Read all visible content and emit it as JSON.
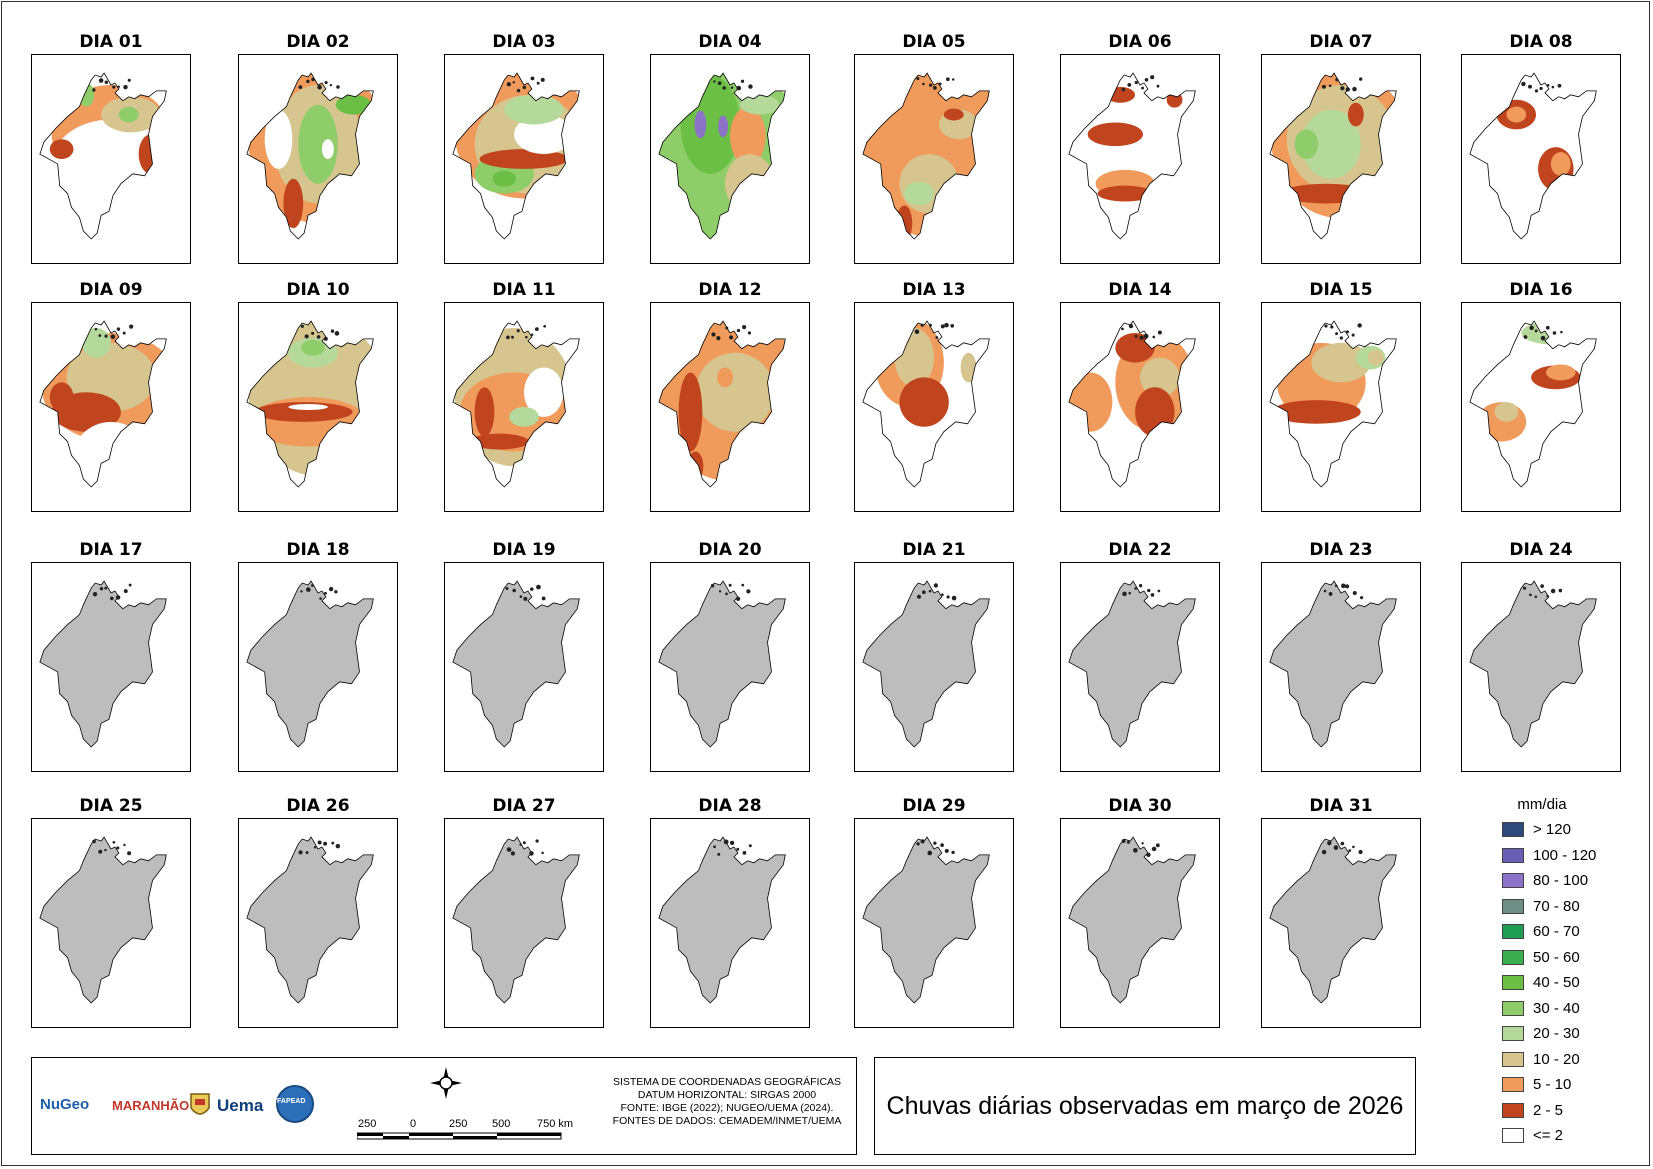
{
  "days": [
    {
      "label": "DIA 01",
      "data": true,
      "pattern": 1
    },
    {
      "label": "DIA 02",
      "data": true,
      "pattern": 2
    },
    {
      "label": "DIA 03",
      "data": true,
      "pattern": 3
    },
    {
      "label": "DIA 04",
      "data": true,
      "pattern": 4
    },
    {
      "label": "DIA 05",
      "data": true,
      "pattern": 5
    },
    {
      "label": "DIA 06",
      "data": true,
      "pattern": 6
    },
    {
      "label": "DIA 07",
      "data": true,
      "pattern": 7
    },
    {
      "label": "DIA 08",
      "data": true,
      "pattern": 8
    },
    {
      "label": "DIA 09",
      "data": true,
      "pattern": 9
    },
    {
      "label": "DIA 10",
      "data": true,
      "pattern": 10
    },
    {
      "label": "DIA 11",
      "data": true,
      "pattern": 11
    },
    {
      "label": "DIA 12",
      "data": true,
      "pattern": 12
    },
    {
      "label": "DIA 13",
      "data": true,
      "pattern": 13
    },
    {
      "label": "DIA 14",
      "data": true,
      "pattern": 14
    },
    {
      "label": "DIA 15",
      "data": true,
      "pattern": 15
    },
    {
      "label": "DIA 16",
      "data": true,
      "pattern": 16
    },
    {
      "label": "DIA 17",
      "data": false
    },
    {
      "label": "DIA 18",
      "data": false
    },
    {
      "label": "DIA 19",
      "data": false
    },
    {
      "label": "DIA 20",
      "data": false
    },
    {
      "label": "DIA 21",
      "data": false
    },
    {
      "label": "DIA 22",
      "data": false
    },
    {
      "label": "DIA 23",
      "data": false
    },
    {
      "label": "DIA 24",
      "data": false
    },
    {
      "label": "DIA 25",
      "data": false
    },
    {
      "label": "DIA 26",
      "data": false
    },
    {
      "label": "DIA 27",
      "data": false
    },
    {
      "label": "DIA 28",
      "data": false
    },
    {
      "label": "DIA 29",
      "data": false
    },
    {
      "label": "DIA 30",
      "data": false
    },
    {
      "label": "DIA 31",
      "data": false
    }
  ],
  "legend": {
    "title": "mm/dia",
    "items": [
      {
        "label": "> 120",
        "color": "#2e4a7d"
      },
      {
        "label": "100 - 120",
        "color": "#6a5fb5"
      },
      {
        "label": "80 - 100",
        "color": "#8c73c8"
      },
      {
        "label": "70 - 80",
        "color": "#6f8f86"
      },
      {
        "label": "60 - 70",
        "color": "#1f9d55"
      },
      {
        "label": "50 - 60",
        "color": "#3aae4f"
      },
      {
        "label": "40 - 50",
        "color": "#6cbf45"
      },
      {
        "label": "30 - 40",
        "color": "#8fcc6a"
      },
      {
        "label": "20 - 30",
        "color": "#b5d99a"
      },
      {
        "label": "10 - 20",
        "color": "#d6c58e"
      },
      {
        "label": "5 - 10",
        "color": "#f09a5b"
      },
      {
        "label": "2 - 5",
        "color": "#c0451f"
      },
      {
        "label": "<= 2",
        "color": "#ffffff"
      }
    ]
  },
  "title": "Chuvas diárias observadas em março de 2026",
  "credits": {
    "crs_lines": [
      "SISTEMA DE COORDENADAS GEOGRÁFICAS",
      "DATUM HORIZONTAL: SIRGAS 2000",
      "FONTE: IBGE (2022); NUGEO/UEMA (2024).",
      "FONTES DE DADOS: CEMADEM/INMET/UEMA"
    ],
    "scale_labels": [
      "250",
      "0",
      "250",
      "500",
      "750 km"
    ],
    "logos": [
      "NuGeo",
      "MARANHÃO",
      "Uema",
      "FAPEAD"
    ]
  },
  "nodata_color": "#bdbdbd"
}
